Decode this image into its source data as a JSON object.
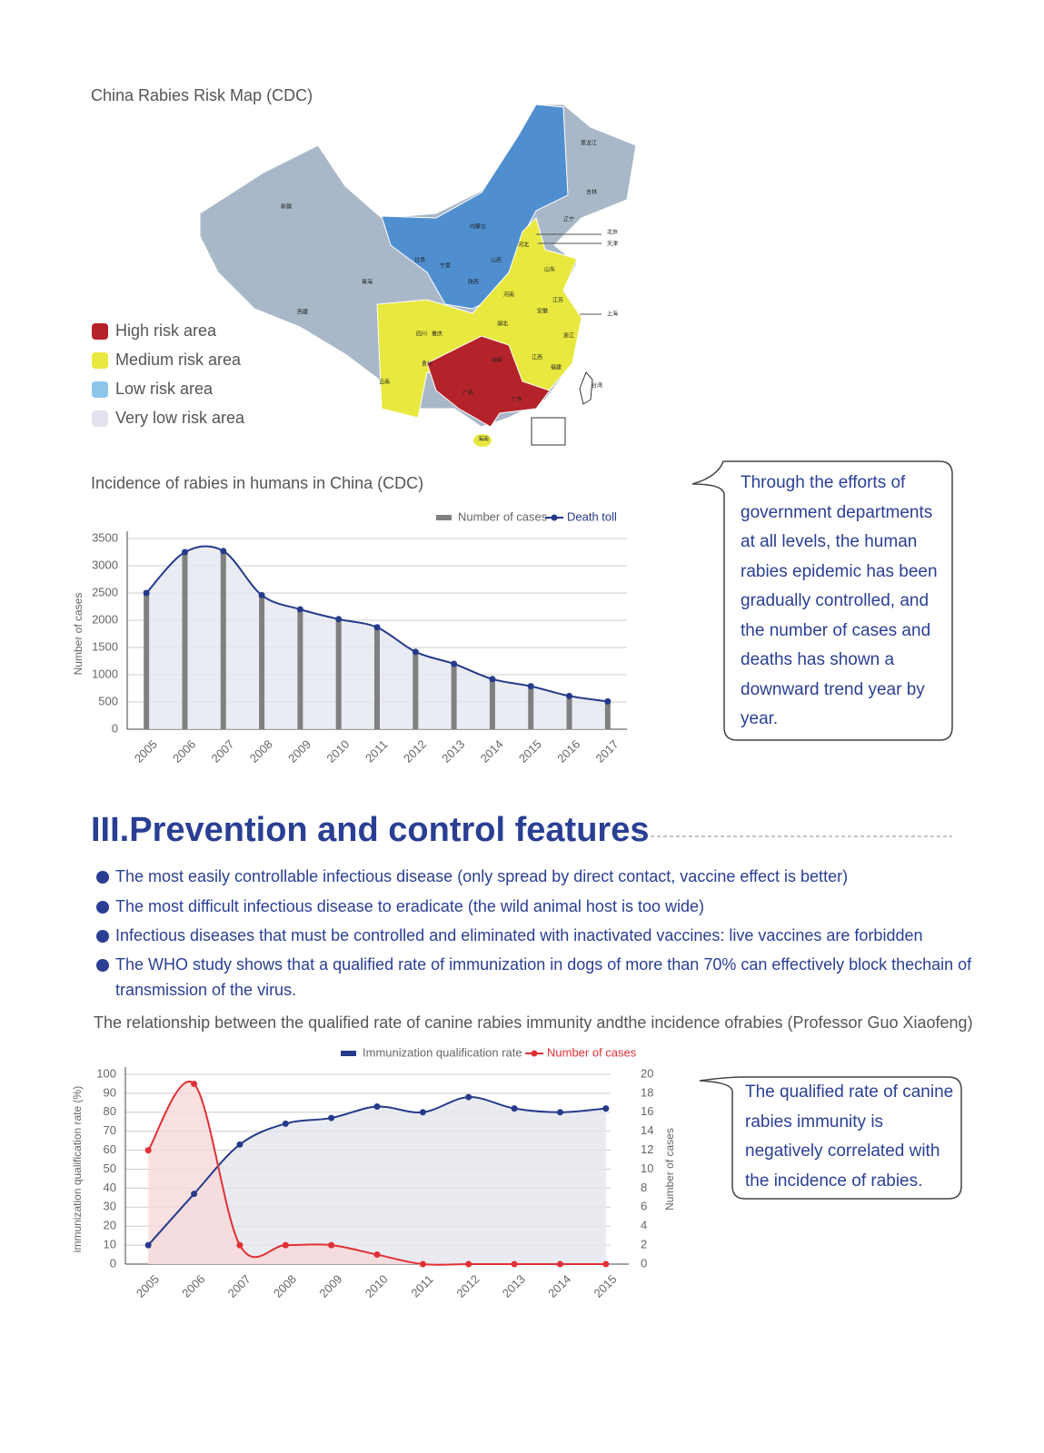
{
  "map": {
    "title": "China Rabies Risk Map (CDC)",
    "legend": [
      {
        "label": "High risk area",
        "color": "#b5232a"
      },
      {
        "label": "Medium risk area",
        "color": "#e8e83f"
      },
      {
        "label": "Low risk area",
        "color": "#8cc6ea"
      },
      {
        "label": "Very low risk area",
        "color": "#e3e3ef"
      }
    ],
    "provinces": [
      "黑龙江",
      "吉林",
      "辽宁",
      "北京",
      "天津",
      "内蒙古",
      "新疆",
      "甘肃",
      "宁夏",
      "河北",
      "山西",
      "山东",
      "青海",
      "陕西",
      "河南",
      "江苏",
      "安徽",
      "上海",
      "西藏",
      "四川",
      "重庆",
      "湖北",
      "浙江",
      "江西",
      "贵州",
      "湖南",
      "福建",
      "云南",
      "广西",
      "广东",
      "台湾",
      "海南"
    ]
  },
  "chart_data": [
    {
      "type": "combo",
      "title": "Incidence of rabies in humans in China (CDC)",
      "y_label": "Number of cases",
      "categories": [
        "2005",
        "2006",
        "2007",
        "2008",
        "2009",
        "2010",
        "2011",
        "2012",
        "2013",
        "2014",
        "2015",
        "2016",
        "2017"
      ],
      "series": [
        {
          "name": "Number of cases",
          "type": "bar",
          "color": "#808080",
          "values": [
            2548,
            3279,
            3300,
            2466,
            2213,
            2048,
            1917,
            1425,
            1172,
            924,
            801,
            644,
            516
          ]
        },
        {
          "name": "Death toll",
          "type": "line",
          "color": "#253a8a",
          "values": [
            2500,
            3250,
            3270,
            2460,
            2200,
            2020,
            1870,
            1420,
            1200,
            920,
            790,
            610,
            510
          ]
        }
      ],
      "ylim": [
        0,
        3500
      ],
      "yticks": [
        0,
        500,
        1000,
        1500,
        2000,
        2500,
        3000,
        3500
      ],
      "grid": true
    },
    {
      "type": "line",
      "title": "The relationship between the qualified rate of canine rabies immunity andthe incidence ofrabies (Professor Guo Xiaofeng)",
      "y_label": "immunization qualification rate (%)",
      "y2_label": "Number of cases",
      "categories": [
        "2005",
        "2006",
        "2007",
        "2008",
        "2009",
        "2010",
        "2011",
        "2012",
        "2013",
        "2014",
        "2015"
      ],
      "series": [
        {
          "name": "Immunization qualification rate",
          "color": "#253a8a",
          "values": [
            10,
            37,
            63,
            74,
            77,
            83,
            80,
            88,
            82,
            80,
            82
          ]
        },
        {
          "name": "Number of cases",
          "color": "#e03035",
          "axis": "y2",
          "values": [
            12,
            19,
            2,
            2,
            2,
            1,
            0,
            0,
            0,
            0,
            0
          ]
        }
      ],
      "ylim": [
        0,
        100
      ],
      "yticks": [
        0,
        10,
        20,
        30,
        40,
        50,
        60,
        70,
        80,
        90,
        100
      ],
      "y2lim": [
        0,
        20
      ],
      "y2ticks": [
        0,
        2,
        4,
        6,
        8,
        10,
        12,
        14,
        16,
        18,
        20
      ],
      "grid": true
    }
  ],
  "note1": "Through the efforts of government departments at all levels, the human rabies epidemic has been gradually controlled, and the number of cases and deaths has shown a downward trend year by year.",
  "section": {
    "heading": "III.Prevention and control features",
    "bullets": [
      "The most easily controllable infectious disease (only spread by direct contact, vaccine effect is better)",
      "The most difficult infectious disease to eradicate (the wild animal host is too wide)",
      "Infectious diseases that must be controlled and eliminated with inactivated vaccines: live vaccines are forbidden",
      "The WHO study shows that a qualified rate of immunization in dogs of more than 70% can effectively block thechain of transmission of the virus."
    ]
  },
  "note2": "The qualified rate of canine rabies immunity is negatively correlated with the incidence of rabies."
}
